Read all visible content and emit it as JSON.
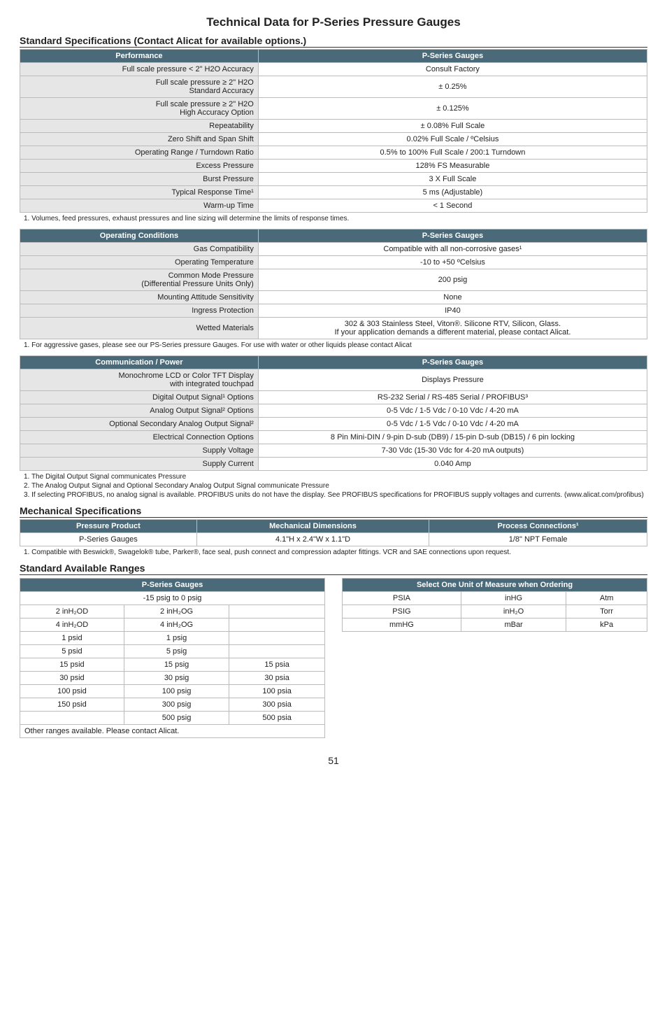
{
  "title": "Technical Data for P-Series Pressure Gauges",
  "sections": {
    "spec_heading": "Standard Specifications (Contact Alicat for available options.)",
    "mech_heading": "Mechanical Specifications",
    "ranges_heading": "Standard Available Ranges"
  },
  "perf": {
    "head_l": "Performance",
    "head_r": "P-Series Gauges",
    "rows": [
      [
        "Full scale pressure < 2\" H2O Accuracy",
        "Consult Factory"
      ],
      [
        "Full scale pressure ≥ 2\" H2O\nStandard Accuracy",
        "± 0.25%"
      ],
      [
        "Full scale pressure ≥ 2\" H2O\nHigh Accuracy Option",
        "± 0.125%"
      ],
      [
        "Repeatability",
        "± 0.08% Full Scale"
      ],
      [
        "Zero Shift and Span Shift",
        "0.02% Full Scale / ºCelsius"
      ],
      [
        "Operating Range / Turndown Ratio",
        "0.5% to 100% Full Scale / 200:1 Turndown"
      ],
      [
        "Excess Pressure",
        "128% FS Measurable"
      ],
      [
        "Burst Pressure",
        "3 X Full Scale"
      ],
      [
        "Typical Response Time¹",
        "5 ms (Adjustable)"
      ],
      [
        "Warm-up Time",
        "< 1 Second"
      ]
    ],
    "footnote": "1. Volumes, feed pressures, exhaust pressures and line sizing will determine the limits of response times."
  },
  "oper": {
    "head_l": "Operating Conditions",
    "head_r": "P-Series Gauges",
    "rows": [
      [
        "Gas Compatibility",
        "Compatible with all non-corrosive gases¹"
      ],
      [
        "Operating Temperature",
        "-10 to +50 ºCelsius"
      ],
      [
        "Common Mode Pressure\n(Differential Pressure Units Only)",
        "200 psig"
      ],
      [
        "Mounting Attitude Sensitivity",
        "None"
      ],
      [
        "Ingress Protection",
        "IP40"
      ],
      [
        "Wetted Materials",
        "302 & 303 Stainless Steel, Viton®. Silicone RTV, Silicon, Glass.\nIf your application demands a different material, please contact Alicat."
      ]
    ],
    "footnote": "1. For aggressive gases, please see our PS-Series pressure Gauges. For use with water or other liquids please contact Alicat"
  },
  "comm": {
    "head_l": "Communication / Power",
    "head_r": "P-Series Gauges",
    "rows": [
      [
        "Monochrome LCD or Color TFT Display\nwith integrated touchpad",
        "Displays Pressure"
      ],
      [
        "Digital Output Signal¹ Options",
        "RS-232 Serial / RS-485 Serial / PROFIBUS³"
      ],
      [
        "Analog Output Signal² Options",
        "0-5 Vdc / 1-5 Vdc / 0-10 Vdc / 4-20 mA"
      ],
      [
        "Optional Secondary Analog Output Signal²",
        "0-5 Vdc / 1-5 Vdc / 0-10 Vdc / 4-20 mA"
      ],
      [
        "Electrical Connection Options",
        "8 Pin Mini-DIN / 9-pin D-sub (DB9) / 15-pin D-sub (DB15) / 6 pin locking"
      ],
      [
        "Supply Voltage",
        "7-30 Vdc  (15-30 Vdc for 4-20 mA outputs)"
      ],
      [
        "Supply Current",
        "0.040 Amp"
      ]
    ],
    "footnotes": [
      "1. The Digital Output Signal communicates  Pressure",
      "2. The Analog Output Signal and Optional Secondary Analog Output Signal communicate Pressure",
      "3. If selecting PROFIBUS, no analog signal is available. PROFIBUS units do not have the display. See PROFIBUS specifications for PROFIBUS supply voltages and currents. (www.alicat.com/profibus)"
    ]
  },
  "mech": {
    "heads": [
      "Pressure Product",
      "Mechanical Dimensions",
      "Process Connections¹"
    ],
    "row": [
      "P-Series Gauges",
      "4.1\"H x 2.4\"W x 1.1\"D",
      "1/8\" NPT Female"
    ],
    "footnote": "1. Compatible with Beswick®, Swagelok® tube, Parker®, face seal, push connect and compression adapter fittings. VCR and SAE connections upon request."
  },
  "ranges": {
    "head": "P-Series Gauges",
    "sub": "-15 psig to 0 psig",
    "rows": [
      [
        "2 inH₂OD",
        "2 inH₂OG",
        ""
      ],
      [
        "4 inH₂OD",
        "4 inH₂OG",
        ""
      ],
      [
        "1 psid",
        "1 psig",
        ""
      ],
      [
        "5 psid",
        "5 psig",
        ""
      ],
      [
        "15 psid",
        "15 psig",
        "15 psia"
      ],
      [
        "30 psid",
        "30 psig",
        "30 psia"
      ],
      [
        "100 psid",
        "100 psig",
        "100 psia"
      ],
      [
        "150 psid",
        "300 psig",
        "300 psia"
      ],
      [
        "",
        "500 psig",
        "500 psia"
      ]
    ],
    "footer": "Other ranges available. Please contact Alicat."
  },
  "units": {
    "head": "Select One Unit of Measure when Ordering",
    "rows": [
      [
        "PSIA",
        "inHG",
        "Atm"
      ],
      [
        "PSIG",
        "inH₂O",
        "Torr"
      ],
      [
        "mmHG",
        "mBar",
        "kPa"
      ]
    ]
  },
  "page_number": "51"
}
